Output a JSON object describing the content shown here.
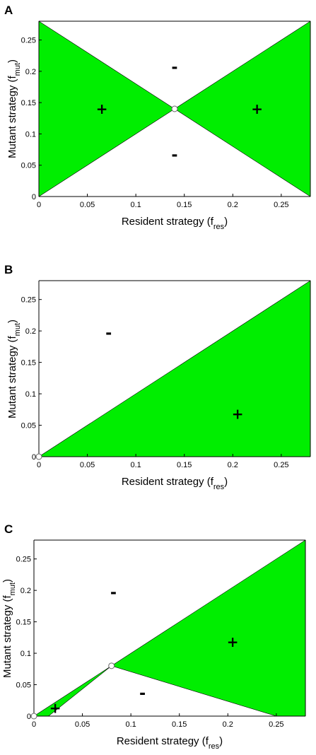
{
  "chart_data": [
    {
      "panel": "A",
      "type": "area",
      "xlabel": "Resident strategy",
      "xlabel_sub": "res",
      "ylabel": "Mutant strategy",
      "ylabel_sub": "mut",
      "xlim": [
        0,
        0.28
      ],
      "ylim": [
        0,
        0.28
      ],
      "xticks": [
        "0",
        "0.05",
        "0.1",
        "0.15",
        "0.2",
        "0.25"
      ],
      "yticks": [
        "0",
        "0.05",
        "0.1",
        "0.15",
        "0.2",
        "0.25"
      ],
      "positive_color": "#00ee00",
      "regions": [
        [
          [
            0,
            0
          ],
          [
            0.14,
            0.14
          ],
          [
            0,
            0.28
          ]
        ],
        [
          [
            0.14,
            0.14
          ],
          [
            0.28,
            0
          ],
          [
            0.28,
            0.28
          ]
        ]
      ],
      "equilibria": [
        [
          0.14,
          0.14
        ]
      ],
      "signs": [
        {
          "text": "+",
          "x": 0.065,
          "y": 0.14
        },
        {
          "text": "+",
          "x": 0.225,
          "y": 0.14
        },
        {
          "text": "-",
          "x": 0.14,
          "y": 0.205
        },
        {
          "text": "-",
          "x": 0.14,
          "y": 0.065
        }
      ]
    },
    {
      "panel": "B",
      "type": "area",
      "xlabel": "Resident strategy",
      "xlabel_sub": "res",
      "ylabel": "Mutant strategy",
      "ylabel_sub": "mut",
      "xlim": [
        0,
        0.28
      ],
      "ylim": [
        0,
        0.28
      ],
      "xticks": [
        "0",
        "0.05",
        "0.1",
        "0.15",
        "0.2",
        "0.25"
      ],
      "yticks": [
        "0",
        "0.05",
        "0.1",
        "0.15",
        "0.2",
        "0.25"
      ],
      "positive_color": "#00ee00",
      "regions": [
        [
          [
            0,
            0
          ],
          [
            0.28,
            0
          ],
          [
            0.28,
            0.28
          ]
        ]
      ],
      "equilibria": [
        [
          0,
          0
        ]
      ],
      "signs": [
        {
          "text": "-",
          "x": 0.072,
          "y": 0.195
        },
        {
          "text": "+",
          "x": 0.205,
          "y": 0.068
        }
      ]
    },
    {
      "panel": "C",
      "type": "area",
      "xlabel": "Resident strategy",
      "xlabel_sub": "res",
      "ylabel": "Mutant strategy",
      "ylabel_sub": "mut",
      "xlim": [
        0,
        0.28
      ],
      "ylim": [
        0,
        0.28
      ],
      "xticks": [
        "0",
        "0.05",
        "0.1",
        "0.15",
        "0.2",
        "0.25"
      ],
      "yticks": [
        "0",
        "0.05",
        "0.1",
        "0.15",
        "0.2",
        "0.25"
      ],
      "positive_color": "#00ee00",
      "regions": [
        [
          [
            0,
            0
          ],
          [
            0.08,
            0.08
          ],
          [
            0.015,
            0
          ]
        ],
        [
          [
            0.08,
            0.08
          ],
          [
            0.28,
            0.28
          ],
          [
            0.28,
            0
          ],
          [
            0.25,
            0
          ]
        ]
      ],
      "equilibria": [
        [
          0,
          0
        ],
        [
          0.08,
          0.08
        ]
      ],
      "signs": [
        {
          "text": "+",
          "x": 0.022,
          "y": 0.013
        },
        {
          "text": "+",
          "x": 0.205,
          "y": 0.118
        },
        {
          "text": "-",
          "x": 0.082,
          "y": 0.195
        },
        {
          "text": "-",
          "x": 0.112,
          "y": 0.035
        }
      ]
    }
  ]
}
